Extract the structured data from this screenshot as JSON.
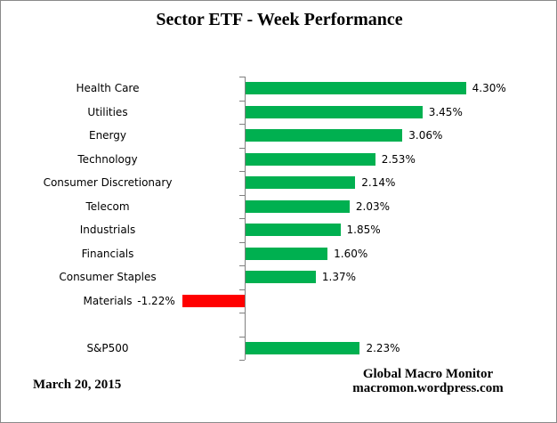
{
  "title": "Sector ETF - Week Performance",
  "footer": {
    "date": "March 20,  2015",
    "brand_line1": "Global Macro Monitor",
    "brand_line2": "macromon.wordpress.com"
  },
  "chart_data": {
    "type": "bar",
    "orientation": "horizontal",
    "title": "Sector ETF - Week Performance",
    "xlabel": "",
    "ylabel": "",
    "grid": false,
    "legend": false,
    "value_axis_labels_visible": false,
    "xlim": [
      -1.25,
      6.1
    ],
    "categories": [
      "Health Care",
      "Utilities",
      "Energy",
      "Technology",
      "Consumer Discretionary",
      "Telecom",
      "Industrials",
      "Financials",
      "Consumer Staples",
      "Materials",
      "",
      "S&P500"
    ],
    "values": [
      4.3,
      3.45,
      3.06,
      2.53,
      2.14,
      2.03,
      1.85,
      1.6,
      1.37,
      -1.22,
      null,
      2.23
    ],
    "value_labels": [
      "4.30%",
      "3.45%",
      "3.06%",
      "2.53%",
      "2.14%",
      "2.03%",
      "1.85%",
      "1.60%",
      "1.37%",
      "-1.22%",
      "",
      "2.23%"
    ],
    "colors": {
      "positive": "#00B050",
      "negative": "#FF0000",
      "axis": "#808080",
      "text": "#000000"
    }
  }
}
